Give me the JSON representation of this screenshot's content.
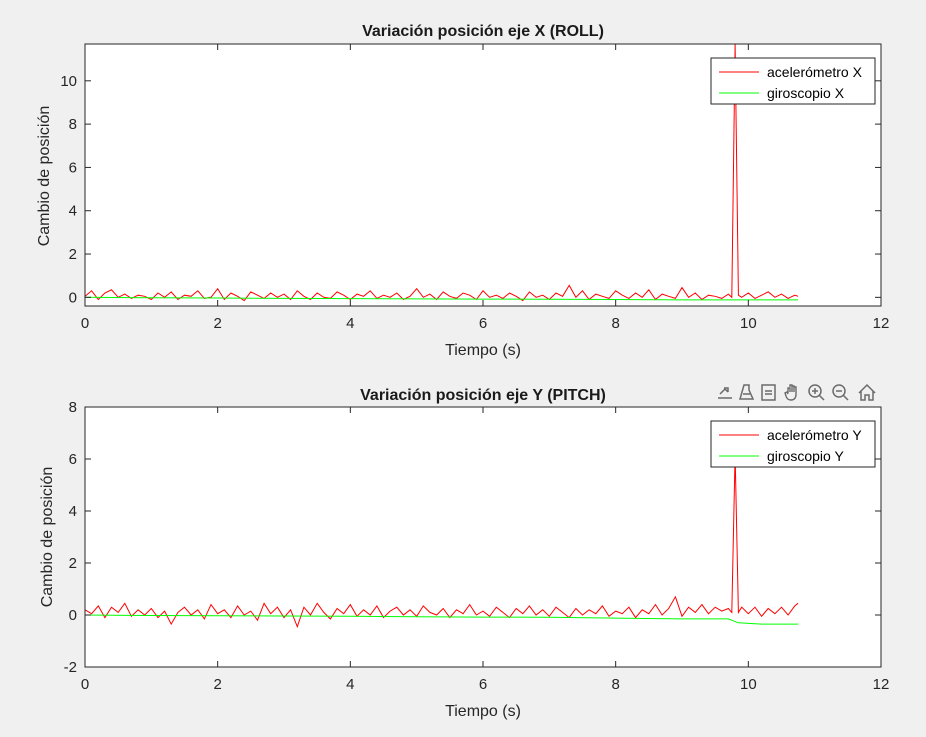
{
  "colors": {
    "figure_bg": "#f0f0f0",
    "axes_bg": "#ffffff",
    "axis_color": "#262626",
    "accelerometer": "#ff0000",
    "gyroscope": "#00ff00",
    "toolbar_icon": "#6b6b6b"
  },
  "toolbar": {
    "icons": [
      "export-icon",
      "brush-icon",
      "datatips-icon",
      "pan-hand-icon",
      "zoom-in-icon",
      "zoom-out-icon",
      "home-icon"
    ]
  },
  "chart_data": [
    {
      "type": "line",
      "title": "Variación posición eje X (ROLL)",
      "xlabel": "Tiempo (s)",
      "ylabel": "Cambio de posición",
      "xlim": [
        0,
        12
      ],
      "ylim": [
        -0.4,
        11.7
      ],
      "xticks": [
        0,
        2,
        4,
        6,
        8,
        10,
        12
      ],
      "yticks": [
        0,
        2,
        4,
        6,
        8,
        10
      ],
      "legend_position": "top-right",
      "grid": false,
      "series": [
        {
          "name": "acelerómetro X",
          "color": "#ff0000",
          "x": [
            0,
            0.1,
            0.2,
            0.3,
            0.4,
            0.5,
            0.6,
            0.7,
            0.8,
            0.9,
            1.0,
            1.1,
            1.2,
            1.3,
            1.4,
            1.5,
            1.6,
            1.7,
            1.8,
            1.9,
            2.0,
            2.1,
            2.2,
            2.3,
            2.4,
            2.5,
            2.6,
            2.7,
            2.8,
            2.9,
            3.0,
            3.1,
            3.2,
            3.3,
            3.4,
            3.5,
            3.6,
            3.7,
            3.8,
            3.9,
            4.0,
            4.1,
            4.2,
            4.3,
            4.4,
            4.5,
            4.6,
            4.7,
            4.8,
            4.9,
            5.0,
            5.1,
            5.2,
            5.3,
            5.4,
            5.5,
            5.6,
            5.7,
            5.8,
            5.9,
            6.0,
            6.1,
            6.2,
            6.3,
            6.4,
            6.5,
            6.6,
            6.7,
            6.8,
            6.9,
            7.0,
            7.1,
            7.2,
            7.3,
            7.4,
            7.5,
            7.6,
            7.7,
            7.8,
            7.9,
            8.0,
            8.1,
            8.2,
            8.3,
            8.4,
            8.5,
            8.6,
            8.7,
            8.8,
            8.9,
            9.0,
            9.1,
            9.2,
            9.3,
            9.4,
            9.5,
            9.6,
            9.7,
            9.75,
            9.8,
            9.85,
            9.9,
            10.0,
            10.1,
            10.2,
            10.3,
            10.4,
            10.5,
            10.6,
            10.7,
            10.75
          ],
          "y": [
            0.05,
            0.3,
            -0.1,
            0.2,
            0.35,
            0.0,
            0.15,
            -0.05,
            0.1,
            0.05,
            -0.1,
            0.2,
            0.0,
            0.25,
            -0.1,
            0.1,
            0.05,
            0.3,
            -0.05,
            0.0,
            0.4,
            -0.1,
            0.2,
            0.05,
            -0.15,
            0.25,
            0.1,
            -0.05,
            0.2,
            0.0,
            0.15,
            -0.1,
            0.3,
            0.05,
            -0.1,
            0.2,
            0.0,
            -0.05,
            0.25,
            0.1,
            -0.1,
            0.15,
            0.05,
            0.3,
            -0.05,
            0.1,
            0.0,
            0.2,
            -0.1,
            0.05,
            0.4,
            0.0,
            0.15,
            -0.1,
            0.25,
            0.05,
            -0.05,
            0.2,
            0.1,
            -0.1,
            0.3,
            0.0,
            0.1,
            -0.05,
            0.2,
            0.05,
            -0.15,
            0.25,
            0.0,
            0.1,
            -0.1,
            0.2,
            0.05,
            0.55,
            0.0,
            0.3,
            -0.1,
            0.15,
            0.05,
            -0.05,
            0.3,
            0.1,
            -0.05,
            0.2,
            0.0,
            0.35,
            -0.1,
            0.15,
            0.05,
            -0.05,
            0.45,
            0.0,
            0.2,
            -0.1,
            0.1,
            0.05,
            -0.05,
            0.15,
            0.0,
            11.7,
            0.1,
            0.0,
            0.2,
            -0.05,
            0.1,
            0.25,
            0.0,
            0.15,
            -0.05,
            0.1,
            0.05
          ]
        },
        {
          "name": "giroscopio X",
          "color": "#00ff00",
          "x": [
            0,
            1,
            2,
            3,
            4,
            5,
            6,
            7,
            8,
            9,
            9.8,
            10.75
          ],
          "y": [
            0.0,
            -0.02,
            -0.03,
            -0.05,
            -0.06,
            -0.07,
            -0.08,
            -0.09,
            -0.1,
            -0.12,
            -0.12,
            -0.12
          ]
        }
      ]
    },
    {
      "type": "line",
      "title": "Variación posición eje Y (PITCH)",
      "xlabel": "Tiempo (s)",
      "ylabel": "Cambio de posición",
      "xlim": [
        0,
        12
      ],
      "ylim": [
        -2,
        8
      ],
      "xticks": [
        0,
        2,
        4,
        6,
        8,
        10,
        12
      ],
      "yticks": [
        -2,
        0,
        2,
        4,
        6,
        8
      ],
      "legend_position": "top-right",
      "grid": false,
      "series": [
        {
          "name": "acelerómetro Y",
          "color": "#ff0000",
          "x": [
            0,
            0.1,
            0.2,
            0.3,
            0.4,
            0.5,
            0.6,
            0.7,
            0.8,
            0.9,
            1.0,
            1.1,
            1.2,
            1.3,
            1.4,
            1.5,
            1.6,
            1.7,
            1.8,
            1.9,
            2.0,
            2.1,
            2.2,
            2.3,
            2.4,
            2.5,
            2.6,
            2.7,
            2.8,
            2.9,
            3.0,
            3.1,
            3.2,
            3.3,
            3.4,
            3.5,
            3.6,
            3.7,
            3.8,
            3.9,
            4.0,
            4.1,
            4.2,
            4.3,
            4.4,
            4.5,
            4.6,
            4.7,
            4.8,
            4.9,
            5.0,
            5.1,
            5.2,
            5.3,
            5.4,
            5.5,
            5.6,
            5.7,
            5.8,
            5.9,
            6.0,
            6.1,
            6.2,
            6.3,
            6.4,
            6.5,
            6.6,
            6.7,
            6.8,
            6.9,
            7.0,
            7.1,
            7.2,
            7.3,
            7.4,
            7.5,
            7.6,
            7.7,
            7.8,
            7.9,
            8.0,
            8.1,
            8.2,
            8.3,
            8.4,
            8.5,
            8.6,
            8.7,
            8.8,
            8.9,
            9.0,
            9.1,
            9.2,
            9.3,
            9.4,
            9.5,
            9.6,
            9.7,
            9.75,
            9.8,
            9.85,
            9.9,
            10.0,
            10.1,
            10.2,
            10.3,
            10.4,
            10.5,
            10.6,
            10.7,
            10.75
          ],
          "y": [
            0.2,
            0.05,
            0.35,
            -0.1,
            0.3,
            0.1,
            0.45,
            -0.05,
            0.2,
            0.0,
            0.25,
            -0.1,
            0.15,
            -0.35,
            0.1,
            0.3,
            0.0,
            0.2,
            -0.15,
            0.4,
            0.05,
            0.2,
            -0.1,
            0.35,
            0.0,
            0.15,
            -0.2,
            0.45,
            0.05,
            0.3,
            -0.1,
            0.2,
            -0.45,
            0.3,
            0.0,
            0.45,
            0.1,
            -0.15,
            0.25,
            0.05,
            0.4,
            -0.05,
            0.2,
            0.0,
            0.35,
            -0.1,
            0.15,
            0.3,
            0.0,
            0.2,
            -0.05,
            0.35,
            0.1,
            0.0,
            0.25,
            -0.1,
            0.2,
            0.05,
            0.4,
            0.0,
            0.15,
            -0.05,
            0.3,
            0.1,
            -0.1,
            0.25,
            0.05,
            0.35,
            0.0,
            0.2,
            -0.05,
            0.3,
            0.1,
            -0.1,
            0.25,
            0.0,
            0.2,
            0.05,
            0.35,
            -0.05,
            0.15,
            0.05,
            0.3,
            -0.1,
            0.2,
            0.05,
            0.4,
            0.0,
            0.25,
            0.7,
            -0.05,
            0.3,
            0.1,
            0.4,
            0.05,
            0.3,
            0.15,
            0.25,
            0.1,
            6.2,
            0.1,
            0.3,
            0.05,
            0.3,
            -0.05,
            0.25,
            0.05,
            0.3,
            0.0,
            0.35,
            0.45
          ]
        },
        {
          "name": "giroscopio Y",
          "color": "#00ff00",
          "x": [
            0,
            1,
            2,
            3,
            4,
            5,
            6,
            7,
            8,
            9,
            9.7,
            9.85,
            10.2,
            10.75
          ],
          "y": [
            0.0,
            -0.02,
            -0.03,
            -0.04,
            -0.05,
            -0.07,
            -0.08,
            -0.09,
            -0.12,
            -0.15,
            -0.15,
            -0.3,
            -0.35,
            -0.35
          ]
        }
      ]
    }
  ]
}
